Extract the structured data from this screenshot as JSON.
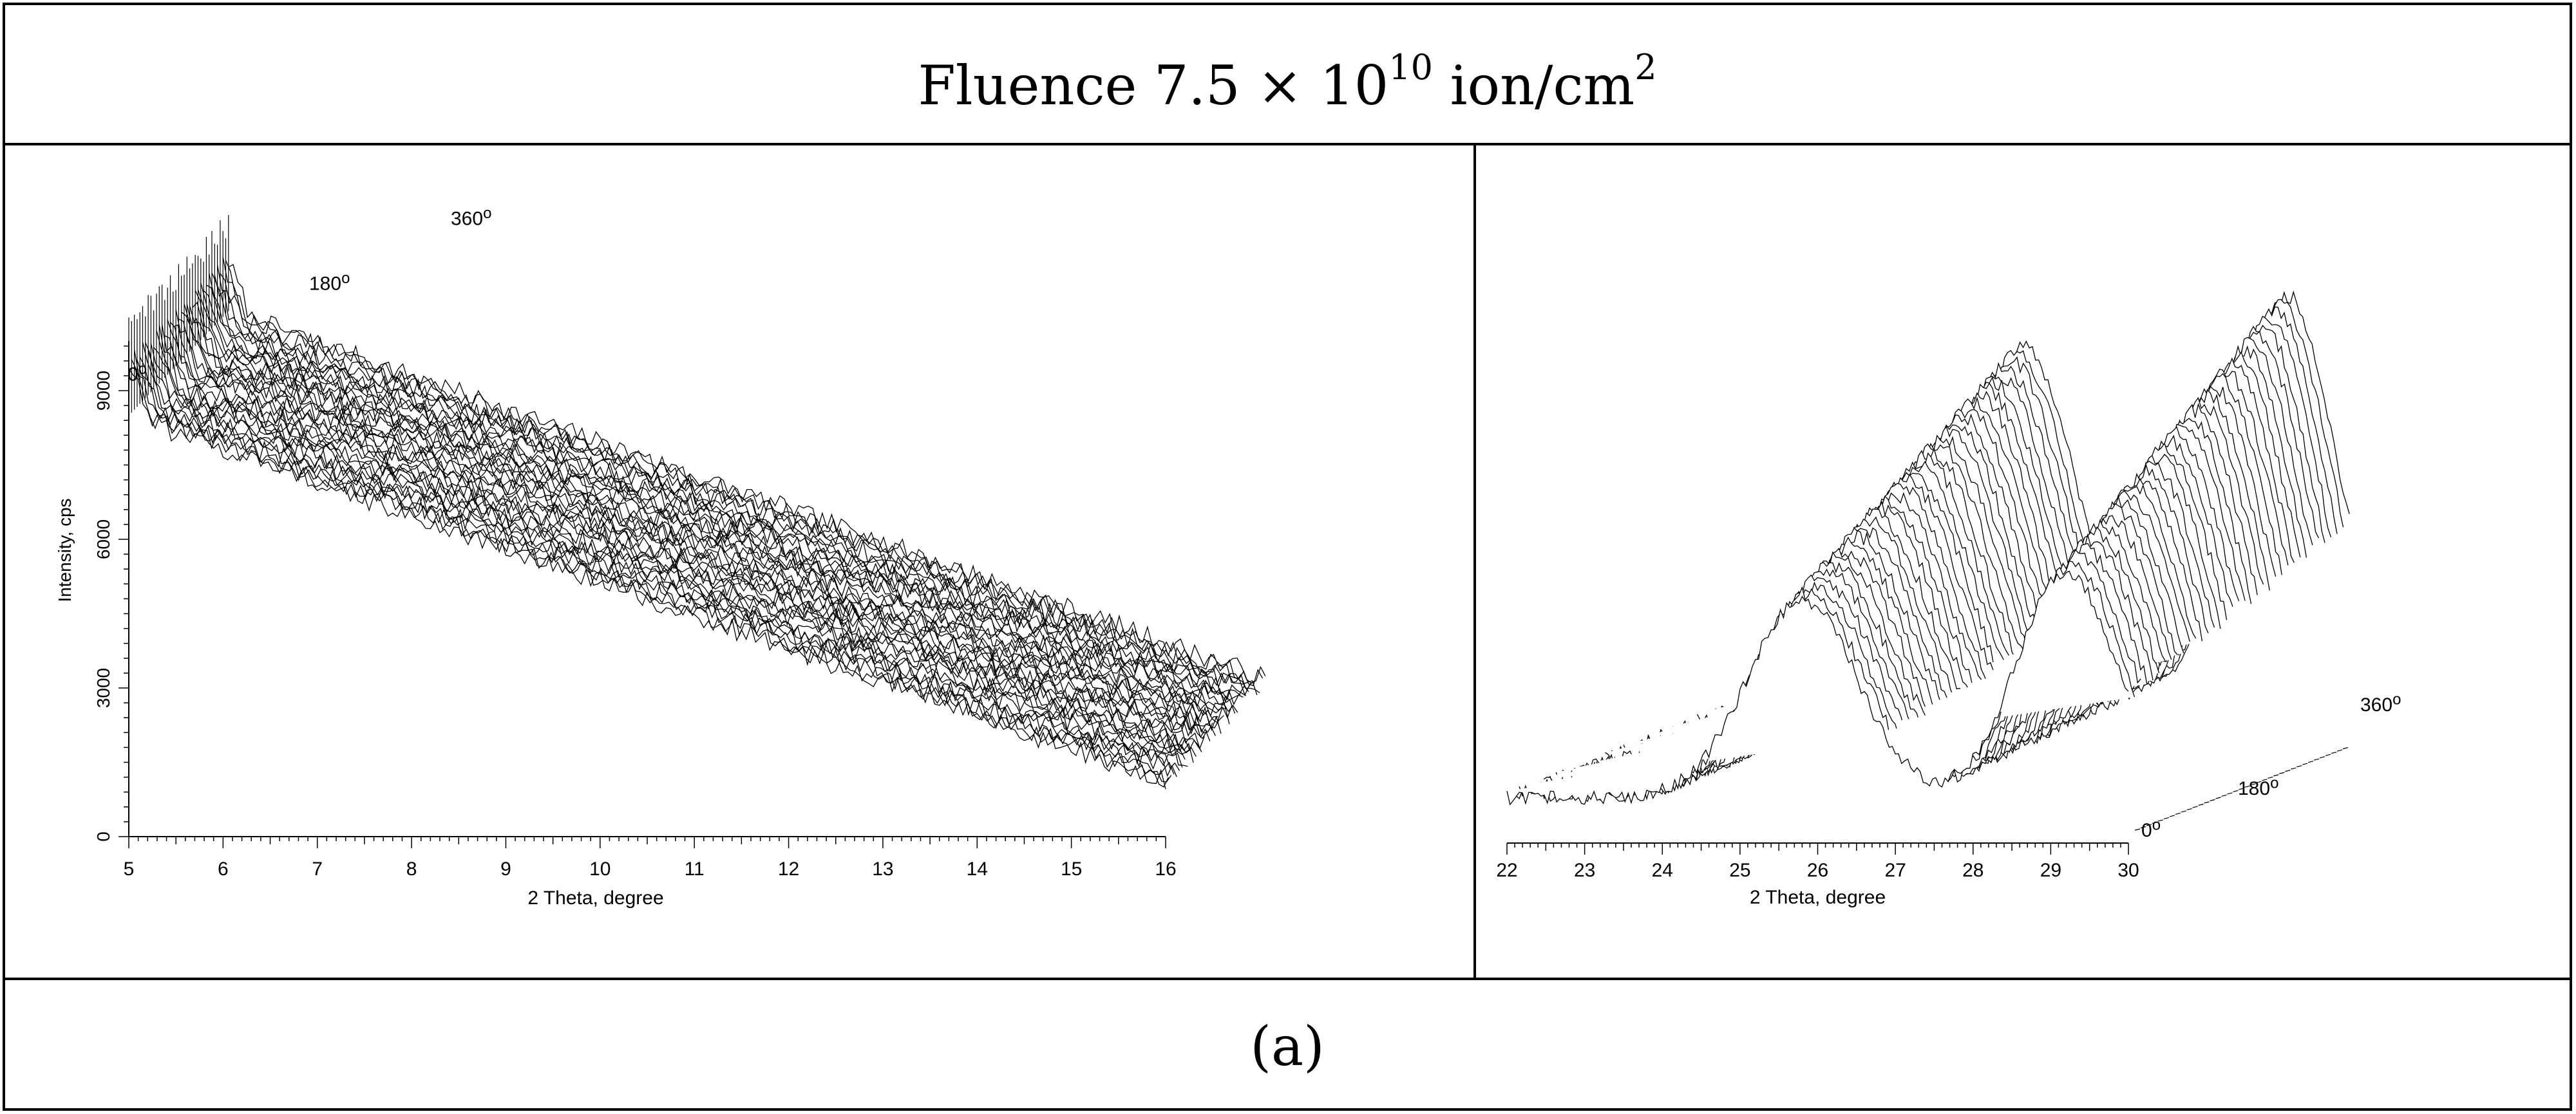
{
  "header": {
    "title_prefix": "Fluence 7.5 × 10",
    "title_exp": "10",
    "title_suffix": " ion/cm",
    "title_unit_exp": "2"
  },
  "footer": {
    "label": "(a)"
  },
  "chart_data": [
    {
      "type": "line",
      "style": "3d-waterfall",
      "xlabel": "2 Theta, degree",
      "ylabel": "Intensity, cps",
      "xlim": [
        5,
        16
      ],
      "ylim": [
        0,
        10000
      ],
      "x_ticks": [
        5,
        6,
        7,
        8,
        9,
        10,
        11,
        12,
        13,
        14,
        15,
        16
      ],
      "y_ticks": [
        0,
        3000,
        6000,
        9000
      ],
      "depth_labels": [
        "0°",
        "180°",
        "360°"
      ],
      "depth_range": [
        0,
        360
      ],
      "series_count": 37,
      "baseline_intensity": 8500,
      "low_angle_rise_intensity": 9500,
      "grid": false
    },
    {
      "type": "line",
      "style": "3d-waterfall",
      "xlabel": "2 Theta, degree",
      "xlim": [
        22,
        30
      ],
      "x_ticks": [
        22,
        23,
        24,
        25,
        26,
        27,
        28,
        29,
        30
      ],
      "depth_labels": [
        "0°",
        "180°",
        "360°"
      ],
      "depth_range": [
        0,
        360
      ],
      "series_count": 37,
      "peak_centers": [
        25.8,
        29.2
      ],
      "grid": false
    }
  ]
}
